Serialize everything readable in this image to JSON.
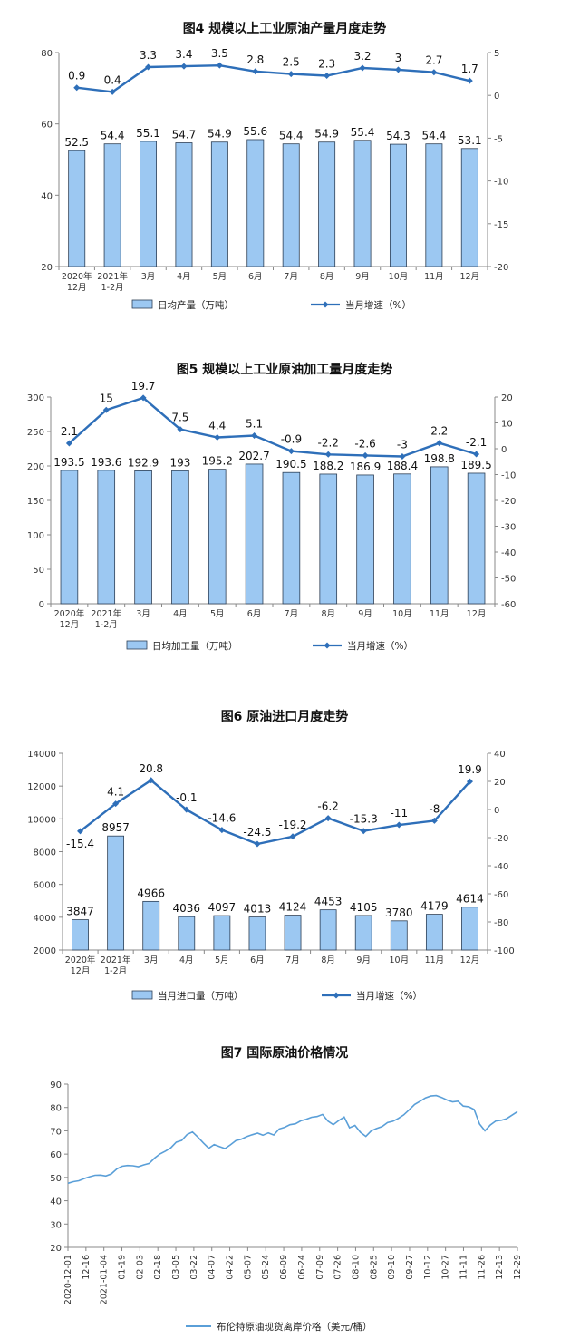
{
  "chart_data": [
    {
      "type": "bar",
      "title": "图4  规模以上工业原油产量月度走势",
      "categories": [
        "2020年\n12月",
        "2021年\n1-2月",
        "3月",
        "4月",
        "5月",
        "6月",
        "7月",
        "8月",
        "9月",
        "10月",
        "11月",
        "12月"
      ],
      "ylim": [
        20,
        80
      ],
      "yticks": [
        20,
        40,
        60,
        80
      ],
      "y2lim": [
        -20,
        5
      ],
      "y2ticks": [
        -20,
        -15,
        -10,
        -5,
        0,
        5
      ],
      "series": [
        {
          "name": "日均产量（万吨）",
          "type": "bar",
          "axis": "left",
          "values": [
            52.5,
            54.4,
            55.1,
            54.7,
            54.9,
            55.6,
            54.4,
            54.9,
            55.4,
            54.3,
            54.4,
            53.1
          ]
        },
        {
          "name": "当月增速（%）",
          "type": "line",
          "axis": "right",
          "values": [
            0.9,
            0.4,
            3.3,
            3.4,
            3.5,
            2.8,
            2.5,
            2.3,
            3.2,
            3.0,
            2.7,
            1.7
          ]
        }
      ],
      "colors": {
        "bar": "#9cc8f2",
        "bar_edge": "#2d3f55",
        "line": "#2e6fb9"
      }
    },
    {
      "type": "bar",
      "title": "图5  规模以上工业原油加工量月度走势",
      "categories": [
        "2020年\n12月",
        "2021年\n1-2月",
        "3月",
        "4月",
        "5月",
        "6月",
        "7月",
        "8月",
        "9月",
        "10月",
        "11月",
        "12月"
      ],
      "ylim": [
        0,
        300
      ],
      "yticks": [
        0,
        50,
        100,
        150,
        200,
        250,
        300
      ],
      "y2lim": [
        -60,
        20
      ],
      "y2ticks": [
        -60,
        -50,
        -40,
        -30,
        -20,
        -10,
        0,
        10,
        20
      ],
      "series": [
        {
          "name": "日均加工量（万吨）",
          "type": "bar",
          "axis": "left",
          "values": [
            193.5,
            193.6,
            192.9,
            193.0,
            195.2,
            202.7,
            190.5,
            188.2,
            186.9,
            188.4,
            198.8,
            189.5
          ]
        },
        {
          "name": "当月增速（%）",
          "type": "line",
          "axis": "right",
          "values": [
            2.1,
            15.0,
            19.7,
            7.5,
            4.4,
            5.1,
            -0.9,
            -2.2,
            -2.6,
            -3.0,
            2.2,
            -2.1
          ]
        }
      ],
      "colors": {
        "bar": "#9cc8f2",
        "bar_edge": "#2d3f55",
        "line": "#2e6fb9"
      }
    },
    {
      "type": "bar",
      "title": "图6  原油进口月度走势",
      "categories": [
        "2020年\n12月",
        "2021年\n1-2月",
        "3月",
        "4月",
        "5月",
        "6月",
        "7月",
        "8月",
        "9月",
        "10月",
        "11月",
        "12月"
      ],
      "ylim": [
        2000,
        14000
      ],
      "yticks": [
        2000,
        4000,
        6000,
        8000,
        10000,
        12000,
        14000
      ],
      "y2lim": [
        -100,
        40
      ],
      "y2ticks": [
        -100,
        -80,
        -60,
        -40,
        -20,
        0,
        20,
        40
      ],
      "series": [
        {
          "name": "当月进口量（万吨）",
          "type": "bar",
          "axis": "left",
          "values": [
            3847,
            8957,
            4966,
            4036,
            4097,
            4013,
            4124,
            4453,
            4105,
            3780,
            4179,
            4614
          ]
        },
        {
          "name": "当月增速（%）",
          "type": "line",
          "axis": "right",
          "values": [
            -15.4,
            4.1,
            20.8,
            -0.1,
            -14.6,
            -24.5,
            -19.2,
            -6.2,
            -15.3,
            -11.0,
            -8.0,
            19.9
          ]
        }
      ],
      "colors": {
        "bar": "#9cc8f2",
        "bar_edge": "#2d3f55",
        "line": "#2e6fb9"
      }
    },
    {
      "type": "line",
      "title": "图7  国际原油价格情况",
      "ylim": [
        20,
        90
      ],
      "yticks": [
        20,
        30,
        40,
        50,
        60,
        70,
        80,
        90
      ],
      "x_tick_labels": [
        "2020-12-01",
        "12-16",
        "2021-01-04",
        "01-19",
        "02-03",
        "02-18",
        "03-05",
        "03-22",
        "04-07",
        "04-22",
        "05-07",
        "05-24",
        "06-09",
        "06-24",
        "07-09",
        "07-26",
        "08-10",
        "08-25",
        "09-10",
        "09-27",
        "10-12",
        "10-27",
        "11-11",
        "11-26",
        "12-13",
        "12-29"
      ],
      "series": [
        {
          "name": "布伦特原油现货离岸价格（美元/桶）",
          "values": [
            47.5,
            48.2,
            48.6,
            49.5,
            50.3,
            50.9,
            51.0,
            50.6,
            51.5,
            53.6,
            54.8,
            55.1,
            55.0,
            54.6,
            55.4,
            56.0,
            58.3,
            60.1,
            61.3,
            62.7,
            65.1,
            65.9,
            68.4,
            69.5,
            67.3,
            64.8,
            62.5,
            64.1,
            63.2,
            62.4,
            64.0,
            65.8,
            66.4,
            67.5,
            68.3,
            69.0,
            68.1,
            69.1,
            68.2,
            70.8,
            71.5,
            72.6,
            73.0,
            74.3,
            74.9,
            75.8,
            76.1,
            77.0,
            74.2,
            72.6,
            74.4,
            75.9,
            71.3,
            72.3,
            69.4,
            67.6,
            70.0,
            71.0,
            71.8,
            73.5,
            74.1,
            75.3,
            76.8,
            79.0,
            81.3,
            82.6,
            84.1,
            84.9,
            85.1,
            84.3,
            83.2,
            82.4,
            82.7,
            80.6,
            80.3,
            79.1,
            72.9,
            70.0,
            72.5,
            74.2,
            74.5,
            75.2,
            76.7,
            78.2
          ]
        }
      ],
      "colors": {
        "line": "#5a9fd8"
      }
    }
  ]
}
